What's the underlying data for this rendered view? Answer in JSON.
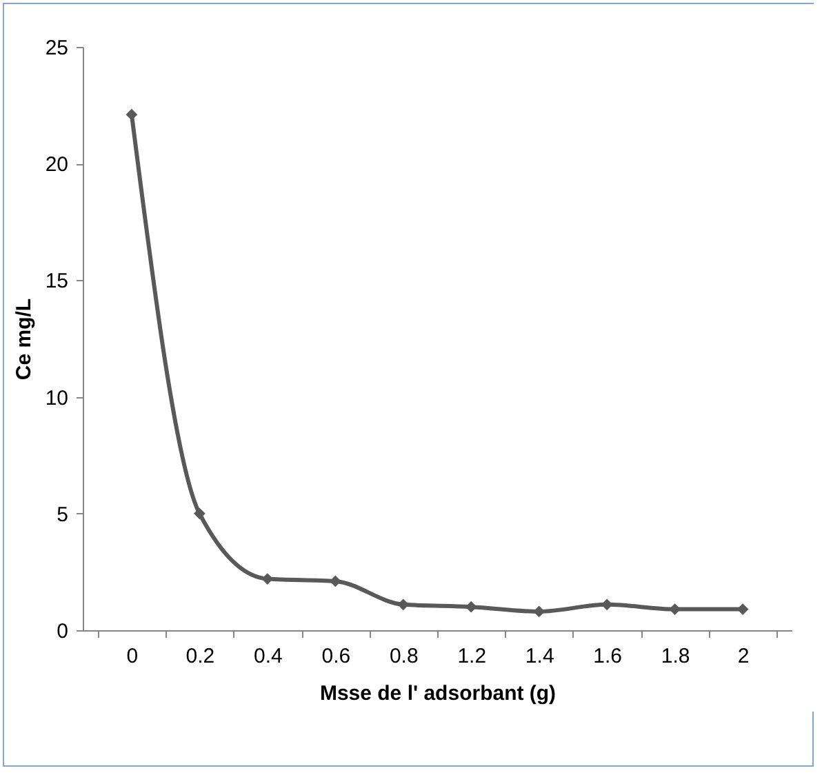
{
  "chart_data": {
    "type": "line",
    "xlabel": "Msse de l' adsorbant (g)",
    "ylabel": "Ce mg/L",
    "categories": [
      "0",
      "0.2",
      "0.4",
      "0.6",
      "0.8",
      "1.2",
      "1.4",
      "1.6",
      "1.8",
      "2"
    ],
    "series": [
      {
        "color": "#595959",
        "values": [
          22.1,
          5.0,
          2.2,
          2.1,
          1.1,
          1.0,
          0.8,
          1.1,
          0.9,
          0.9
        ]
      }
    ],
    "ylim": [
      0,
      25
    ],
    "yticks": [
      0,
      5,
      10,
      15,
      20,
      25
    ],
    "grid": false,
    "legend": false,
    "marker": "diamond",
    "line_style": "solid"
  }
}
